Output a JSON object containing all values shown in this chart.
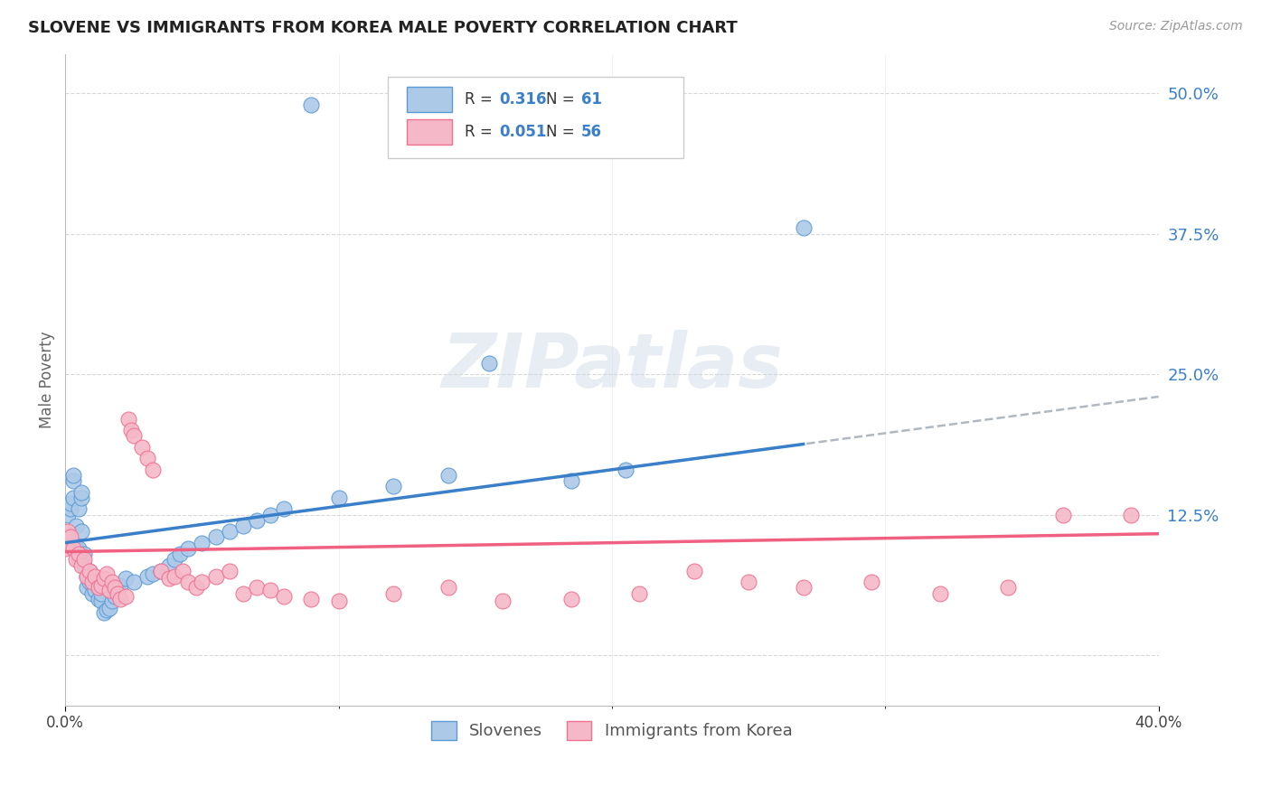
{
  "title": "SLOVENE VS IMMIGRANTS FROM KOREA MALE POVERTY CORRELATION CHART",
  "source": "Source: ZipAtlas.com",
  "ylabel": "Male Poverty",
  "ytick_values": [
    0.0,
    0.125,
    0.25,
    0.375,
    0.5
  ],
  "xlim": [
    0.0,
    0.4
  ],
  "ylim": [
    -0.045,
    0.535
  ],
  "slovene_color": "#adc9e8",
  "korea_color": "#f5b8c8",
  "slovene_edge_color": "#5b9bd5",
  "korea_edge_color": "#f07090",
  "slovene_line_color": "#3a7fca",
  "korea_line_color": "#f06080",
  "trend_ext_color": "#b0b8c0",
  "legend_R_slovene": "0.316",
  "legend_N_slovene": "61",
  "legend_R_korea": "0.051",
  "legend_N_korea": "56",
  "number_color": "#3a7fca",
  "slovene_scatter_x": [
    0.0,
    0.001,
    0.001,
    0.002,
    0.002,
    0.003,
    0.003,
    0.003,
    0.004,
    0.004,
    0.005,
    0.005,
    0.005,
    0.006,
    0.006,
    0.006,
    0.007,
    0.007,
    0.008,
    0.008,
    0.009,
    0.009,
    0.01,
    0.01,
    0.011,
    0.011,
    0.012,
    0.012,
    0.013,
    0.013,
    0.014,
    0.015,
    0.016,
    0.017,
    0.018,
    0.019,
    0.02,
    0.022,
    0.025,
    0.03,
    0.032,
    0.035,
    0.038,
    0.04,
    0.042,
    0.045,
    0.05,
    0.055,
    0.06,
    0.065,
    0.07,
    0.075,
    0.08,
    0.1,
    0.12,
    0.14,
    0.155,
    0.185,
    0.205,
    0.09,
    0.27
  ],
  "slovene_scatter_y": [
    0.1,
    0.105,
    0.125,
    0.13,
    0.135,
    0.14,
    0.155,
    0.16,
    0.115,
    0.095,
    0.085,
    0.095,
    0.13,
    0.11,
    0.14,
    0.145,
    0.08,
    0.09,
    0.06,
    0.07,
    0.065,
    0.075,
    0.055,
    0.065,
    0.058,
    0.07,
    0.05,
    0.06,
    0.048,
    0.055,
    0.038,
    0.04,
    0.042,
    0.048,
    0.052,
    0.058,
    0.062,
    0.068,
    0.065,
    0.07,
    0.072,
    0.075,
    0.08,
    0.085,
    0.09,
    0.095,
    0.1,
    0.105,
    0.11,
    0.115,
    0.12,
    0.125,
    0.13,
    0.14,
    0.15,
    0.16,
    0.26,
    0.155,
    0.165,
    0.49,
    0.38
  ],
  "korea_scatter_x": [
    0.0,
    0.001,
    0.002,
    0.003,
    0.004,
    0.005,
    0.006,
    0.007,
    0.008,
    0.009,
    0.01,
    0.011,
    0.012,
    0.013,
    0.014,
    0.015,
    0.016,
    0.017,
    0.018,
    0.019,
    0.02,
    0.022,
    0.023,
    0.024,
    0.025,
    0.028,
    0.03,
    0.032,
    0.035,
    0.038,
    0.04,
    0.043,
    0.045,
    0.048,
    0.05,
    0.055,
    0.06,
    0.065,
    0.07,
    0.075,
    0.08,
    0.09,
    0.1,
    0.12,
    0.14,
    0.16,
    0.185,
    0.21,
    0.23,
    0.25,
    0.27,
    0.295,
    0.32,
    0.345,
    0.365,
    0.39
  ],
  "korea_scatter_y": [
    0.095,
    0.11,
    0.105,
    0.095,
    0.085,
    0.09,
    0.08,
    0.085,
    0.07,
    0.075,
    0.065,
    0.07,
    0.06,
    0.062,
    0.068,
    0.072,
    0.058,
    0.065,
    0.06,
    0.055,
    0.05,
    0.052,
    0.21,
    0.2,
    0.195,
    0.185,
    0.175,
    0.165,
    0.075,
    0.068,
    0.07,
    0.075,
    0.065,
    0.06,
    0.065,
    0.07,
    0.075,
    0.055,
    0.06,
    0.058,
    0.052,
    0.05,
    0.048,
    0.055,
    0.06,
    0.048,
    0.05,
    0.055,
    0.075,
    0.065,
    0.06,
    0.065,
    0.055,
    0.06,
    0.125,
    0.125
  ],
  "slovene_trend_x0": 0.0,
  "slovene_trend_y0": 0.1,
  "slovene_trend_x1": 0.4,
  "slovene_trend_y1": 0.23,
  "korea_trend_x0": 0.0,
  "korea_trend_y0": 0.092,
  "korea_trend_x1": 0.4,
  "korea_trend_y1": 0.108,
  "dash_trend_x0": 0.18,
  "dash_trend_x1": 0.4,
  "watermark_text": "ZIPatlas",
  "background_color": "#ffffff",
  "grid_color": "#d8d8d8"
}
